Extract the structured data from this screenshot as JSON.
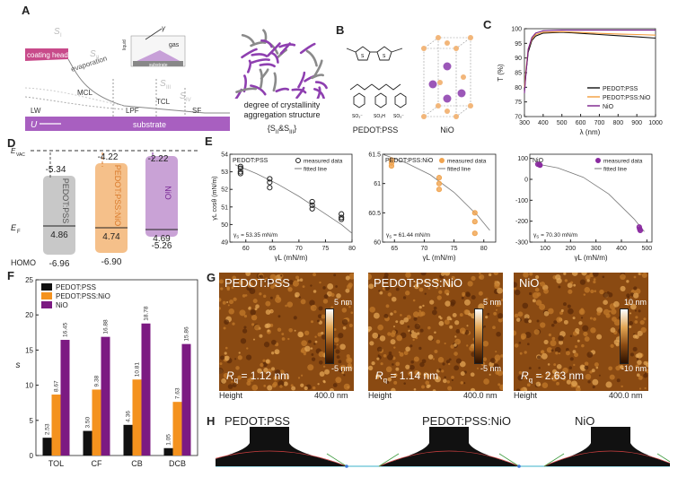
{
  "panels": {
    "A": {
      "label": "A",
      "coating_head": "coating head",
      "s1": "S",
      "s1_sub": "I",
      "s2": "S",
      "s2_sub": "II",
      "s3": "S",
      "s3_sub": "III",
      "s4": "S",
      "s4_sub": "IV",
      "evaporation": "evaporation",
      "mcl": "MCL",
      "tcl": "TCL",
      "lw": "LW",
      "lpf": "LPF",
      "sf": "SF",
      "substrate": "substrate",
      "u": "U",
      "inset_liquid": "liquid",
      "inset_gas": "gas",
      "inset_substrate": "substrate",
      "inset_gamma": "γ",
      "caption1": "degree of crystallinity",
      "caption2": "aggregation structure",
      "caption3": "{S",
      "caption3b": "II",
      "caption3c": "&S",
      "caption3d": "III",
      "caption3e": "}"
    },
    "B": {
      "label": "B",
      "pedot": "PEDOT:PSS",
      "nio": "NiO"
    },
    "C": {
      "label": "C"
    },
    "D": {
      "label": "D",
      "evac": "E",
      "evac_sub": "VAC",
      "ef": "E",
      "ef_sub": "F",
      "homo": "HOMO",
      "bars": [
        {
          "name": "PEDOT:PSS",
          "top": "-5.34",
          "ef": "4.86",
          "bottom": "-6.96",
          "color": "#c8c8c8"
        },
        {
          "name": "PEDOT:PSS:NiO",
          "top": "-4.22",
          "ef": "4.74",
          "bottom": "-6.90",
          "color": "#f5c08a"
        },
        {
          "name": "NiO",
          "top": "-2.22",
          "ef": "4.69",
          "bottom": "-5.26",
          "color": "#c9a2d6"
        }
      ]
    },
    "E": {
      "label": "E",
      "measured": "measured data",
      "fitted": "fitted line",
      "sub": [
        {
          "title": "PEDOT:PSS",
          "gs": "γ",
          "gs_sub": "S",
          "gs_val": "= 53.35 mN/m"
        },
        {
          "title": "PEDOT:PSS:NiO",
          "gs": "γ",
          "gs_sub": "S",
          "gs_val": "= 61.44 mN/m"
        },
        {
          "title": "NiO",
          "gs": "γ",
          "gs_sub": "S",
          "gs_val": "= 70.30 mN/m"
        }
      ]
    },
    "F": {
      "label": "F"
    },
    "G": {
      "label": "G",
      "height": "Height",
      "scale": "400.0 nm",
      "afm": [
        {
          "title": "PEDOT:PSS",
          "rq": "R",
          "rq_sub": "q",
          "rq_val": "= 1.12 nm",
          "cmax": "5 nm",
          "cmin": "-5 nm"
        },
        {
          "title": "PEDOT:PSS:NiO",
          "rq": "R",
          "rq_sub": "q",
          "rq_val": "= 1.14 nm",
          "cmax": "5 nm",
          "cmin": "-5 nm"
        },
        {
          "title": "NiO",
          "rq": "R",
          "rq_sub": "q",
          "rq_val": "= 2.63 nm",
          "cmax": "10 nm",
          "cmin": "-10 nm"
        }
      ]
    },
    "H": {
      "label": "H",
      "titles": [
        "PEDOT:PSS",
        "PEDOT:PSS:NiO",
        "NiO"
      ]
    }
  },
  "chart_data": [
    {
      "type": "line",
      "panel": "C",
      "xlabel": "λ (nm)",
      "ylabel": "T (%)",
      "xlim": [
        300,
        1000
      ],
      "ylim": [
        70,
        100
      ],
      "xticks": [
        300,
        400,
        500,
        600,
        700,
        800,
        900,
        1000
      ],
      "yticks": [
        70,
        75,
        80,
        85,
        90,
        95,
        100
      ],
      "x": [
        300,
        310,
        320,
        340,
        360,
        400,
        500,
        600,
        700,
        800,
        900,
        1000
      ],
      "series": [
        {
          "name": "PEDOT:PSS",
          "color": "#111111",
          "values": [
            79,
            86,
            92,
            96,
            97.5,
            98.5,
            98.8,
            98.4,
            98.0,
            97.6,
            97.2,
            96.8
          ]
        },
        {
          "name": "PEDOT:PSS:NiO",
          "color": "#f39c3c",
          "values": [
            80,
            87,
            93,
            96.5,
            98,
            98.8,
            99.0,
            98.7,
            98.4,
            98.2,
            98.0,
            97.8
          ]
        },
        {
          "name": "NiO",
          "color": "#7a1f8a",
          "values": [
            78,
            86,
            93,
            97,
            98.5,
            99.3,
            99.5,
            99.5,
            99.5,
            99.5,
            99.5,
            99.5
          ]
        }
      ],
      "legend": "bottom-right"
    },
    {
      "type": "scatter",
      "panel": "E1",
      "title": "PEDOT:PSS",
      "xlabel": "γL (mN/m)",
      "ylabel": "γL cosθ (mN/m)",
      "xlim": [
        57,
        80
      ],
      "ylim": [
        49,
        54
      ],
      "xticks": [
        60,
        65,
        70,
        75,
        80
      ],
      "yticks": [
        49,
        50,
        51,
        52,
        53,
        54
      ],
      "points": [
        [
          59,
          53.2
        ],
        [
          59,
          53.0
        ],
        [
          59,
          52.9
        ],
        [
          59,
          53.3
        ],
        [
          64.5,
          52.6
        ],
        [
          64.5,
          52.4
        ],
        [
          64.5,
          52.1
        ],
        [
          72.5,
          51.3
        ],
        [
          72.5,
          51.1
        ],
        [
          72.5,
          50.9
        ],
        [
          78,
          50.6
        ],
        [
          78,
          50.4
        ],
        [
          78,
          50.3
        ]
      ],
      "fit": [
        [
          58,
          53.4
        ],
        [
          62,
          52.9
        ],
        [
          66,
          52.3
        ],
        [
          70,
          51.6
        ],
        [
          74,
          50.8
        ],
        [
          78,
          50.0
        ],
        [
          80,
          49.5
        ]
      ],
      "marker_color": "#222222"
    },
    {
      "type": "scatter",
      "panel": "E2",
      "title": "PEDOT:PSS:NiO",
      "xlabel": "γL (mN/m)",
      "ylabel": "",
      "xlim": [
        63,
        82
      ],
      "ylim": [
        60,
        61.5
      ],
      "xticks": [
        65,
        70,
        75,
        80
      ],
      "yticks": [
        60.0,
        60.5,
        61.0,
        61.5
      ],
      "points": [
        [
          64.5,
          61.4
        ],
        [
          64.5,
          61.35
        ],
        [
          64.5,
          61.3
        ],
        [
          72.5,
          61.1
        ],
        [
          72.5,
          61.0
        ],
        [
          72.5,
          60.9
        ],
        [
          78.5,
          60.5
        ],
        [
          78.5,
          60.35
        ],
        [
          78.5,
          60.15
        ]
      ],
      "fit": [
        [
          63,
          61.5
        ],
        [
          67,
          61.35
        ],
        [
          71,
          61.15
        ],
        [
          75,
          60.85
        ],
        [
          79,
          60.45
        ],
        [
          81,
          60.2
        ]
      ],
      "marker_color": "#f0a450"
    },
    {
      "type": "scatter",
      "panel": "E3",
      "title": "NiO",
      "xlabel": "γL (mN/m)",
      "ylabel": "",
      "xlim": [
        40,
        520
      ],
      "ylim": [
        -300,
        120
      ],
      "xticks": [
        100,
        200,
        300,
        400,
        500
      ],
      "yticks": [
        -300,
        -200,
        -100,
        0,
        100
      ],
      "points": [
        [
          72,
          72
        ],
        [
          78,
          70
        ],
        [
          80,
          68
        ],
        [
          470,
          -228
        ],
        [
          472,
          -238
        ],
        [
          474,
          -244
        ]
      ],
      "fit": [
        [
          60,
          75
        ],
        [
          150,
          55
        ],
        [
          250,
          10
        ],
        [
          350,
          -70
        ],
        [
          450,
          -190
        ],
        [
          490,
          -250
        ]
      ],
      "marker_color": "#8a2aa0"
    },
    {
      "type": "bar",
      "panel": "F",
      "ylabel": "s",
      "ylim": [
        0,
        25
      ],
      "yticks": [
        0,
        5,
        10,
        15,
        20,
        25
      ],
      "categories": [
        "TOL",
        "CF",
        "CB",
        "DCB"
      ],
      "series": [
        {
          "name": "PEDOT:PSS",
          "color": "#111111",
          "values": [
            2.53,
            3.5,
            4.36,
            1.05
          ]
        },
        {
          "name": "PEDOT:PSS:NiO",
          "color": "#f4921e",
          "values": [
            8.67,
            9.38,
            10.81,
            7.63
          ]
        },
        {
          "name": "NiO",
          "color": "#7c1a82",
          "values": [
            16.45,
            16.88,
            18.78,
            15.86
          ]
        }
      ],
      "legend": "top-left"
    }
  ]
}
